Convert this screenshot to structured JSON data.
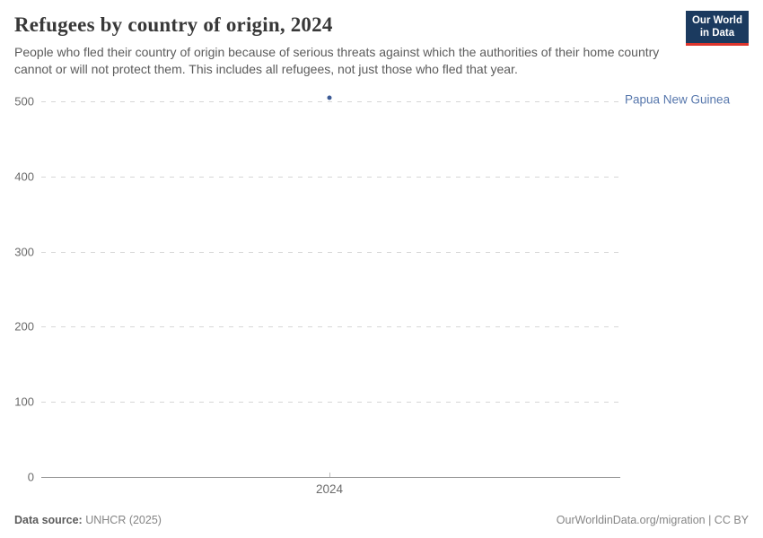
{
  "header": {
    "title": "Refugees by country of origin, 2024",
    "subtitle": "People who fled their country of origin because of serious threats against which the authorities of their home country cannot or will not protect them. This includes all refugees, not just those who fled that year.",
    "logo": {
      "line1": "Our World",
      "line2": "in Data"
    }
  },
  "footer": {
    "source_label": "Data source:",
    "source_value": " UNHCR (2025)",
    "link": "OurWorldinData.org/migration | CC BY"
  },
  "colors": {
    "logo_navy": "#1b3a5f",
    "logo_red": "#dc352d",
    "point_blue": "#3c5a95",
    "entity_label_blue": "#5878ad",
    "grid_gray": "#d7d7d7",
    "axis_gray": "#999999",
    "text_gray": "#6b6b6b"
  },
  "chart_data": {
    "type": "scatter",
    "title": "Refugees by country of origin, 2024",
    "xlabel": "",
    "ylabel": "",
    "x_ticks": [
      "2024"
    ],
    "y_ticks": [
      0,
      100,
      200,
      300,
      400,
      500
    ],
    "ylim": [
      0,
      500
    ],
    "grid": "horizontal dashed",
    "legend_position": "label right of plot",
    "series": [
      {
        "name": "Papua New Guinea",
        "x": [
          2024
        ],
        "values": [
          505
        ]
      }
    ]
  }
}
